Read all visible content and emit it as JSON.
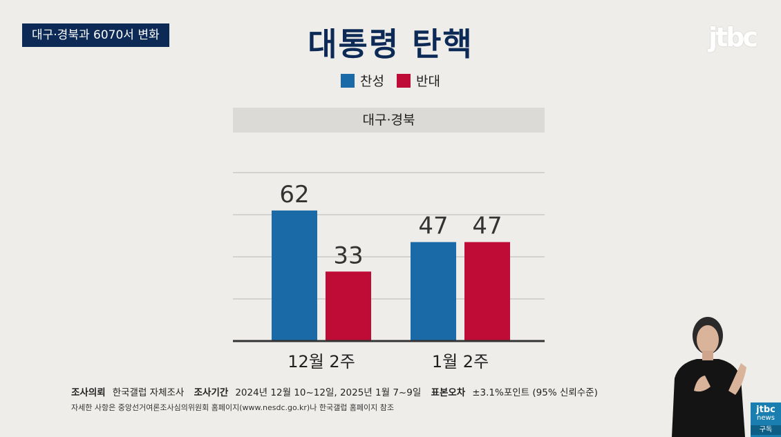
{
  "tag": "대구·경북과 6070서 변화",
  "title": "대통령 탄핵",
  "logo": "jtbc",
  "legend": [
    {
      "label": "찬성",
      "color": "#1a6aa8"
    },
    {
      "label": "반대",
      "color": "#be0c36"
    }
  ],
  "region": "대구·경북",
  "chart_data": {
    "type": "bar",
    "categories": [
      "12월 2주",
      "1월 2주"
    ],
    "series": [
      {
        "name": "찬성",
        "values": [
          62,
          47
        ],
        "color": "#1a6aa8"
      },
      {
        "name": "반대",
        "values": [
          33,
          47
        ],
        "color": "#be0c36"
      }
    ],
    "ylim": [
      0,
      80
    ],
    "grid": true
  },
  "footer": {
    "req_label": "조사의뢰",
    "req_value": "한국갤럽 자체조사",
    "period_label": "조사기간",
    "period_value": "2024년 12월 10~12일, 2025년 1월 7~9일",
    "error_label": "표본오차",
    "error_value": "±3.1%포인트 (95% 신뢰수준)",
    "note": "자세한 사항은 중앙선거여론조사심의위원회 홈페이지(www.nesdc.go.kr)나 한국갤럽 홈페이지 참조"
  },
  "subscribe": {
    "logo": "jtbc",
    "sub": "news",
    "label": "구독"
  }
}
